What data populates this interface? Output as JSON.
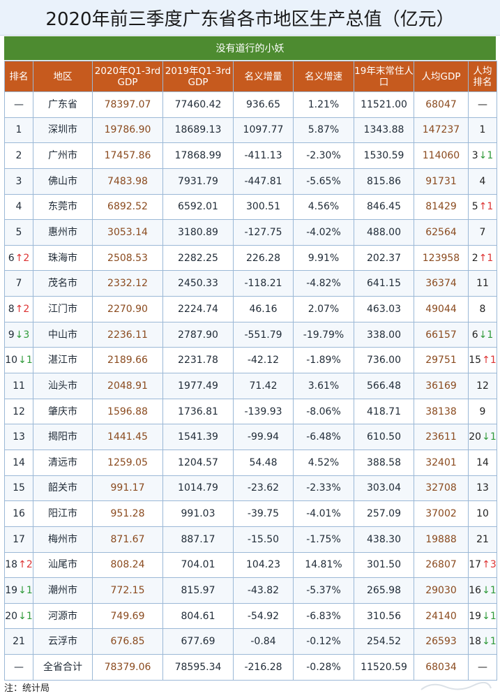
{
  "title": "2020年前三季度广东省各市地区生产总值（亿元）",
  "subtitle": "没有道行的小妖",
  "headers": [
    "排名",
    "地区",
    "2020年Q1-3rd GDP",
    "2019年Q1-3rd GDP",
    "名义增量",
    "名义增速",
    "19年末常住人口",
    "人均GDP",
    "人均排名"
  ],
  "rows": [
    {
      "rank": "—",
      "rank_change": "",
      "rank_dir": "",
      "region": "广东省",
      "gdp2020": "78397.07",
      "gdp2019": "77460.42",
      "increase": "936.65",
      "rate": "1.21%",
      "population": "11521.00",
      "per_capita": "68047",
      "pc_rank": "—",
      "pc_change": "",
      "pc_dir": ""
    },
    {
      "rank": "1",
      "rank_change": "",
      "rank_dir": "",
      "region": "深圳市",
      "gdp2020": "19786.90",
      "gdp2019": "18689.13",
      "increase": "1097.77",
      "rate": "5.87%",
      "population": "1343.88",
      "per_capita": "147237",
      "pc_rank": "1",
      "pc_change": "",
      "pc_dir": ""
    },
    {
      "rank": "2",
      "rank_change": "",
      "rank_dir": "",
      "region": "广州市",
      "gdp2020": "17457.86",
      "gdp2019": "17868.99",
      "increase": "-411.13",
      "rate": "-2.30%",
      "population": "1530.59",
      "per_capita": "114060",
      "pc_rank": "3",
      "pc_change": "↓1",
      "pc_dir": "down"
    },
    {
      "rank": "3",
      "rank_change": "",
      "rank_dir": "",
      "region": "佛山市",
      "gdp2020": "7483.98",
      "gdp2019": "7931.79",
      "increase": "-447.81",
      "rate": "-5.65%",
      "population": "815.86",
      "per_capita": "91731",
      "pc_rank": "4",
      "pc_change": "",
      "pc_dir": ""
    },
    {
      "rank": "4",
      "rank_change": "",
      "rank_dir": "",
      "region": "东莞市",
      "gdp2020": "6892.52",
      "gdp2019": "6592.01",
      "increase": "300.51",
      "rate": "4.56%",
      "population": "846.45",
      "per_capita": "81429",
      "pc_rank": "5",
      "pc_change": "↑1",
      "pc_dir": "up"
    },
    {
      "rank": "5",
      "rank_change": "",
      "rank_dir": "",
      "region": "惠州市",
      "gdp2020": "3053.14",
      "gdp2019": "3180.89",
      "increase": "-127.75",
      "rate": "-4.02%",
      "population": "488.00",
      "per_capita": "62564",
      "pc_rank": "7",
      "pc_change": "",
      "pc_dir": ""
    },
    {
      "rank": "6",
      "rank_change": "↑2",
      "rank_dir": "up",
      "region": "珠海市",
      "gdp2020": "2508.53",
      "gdp2019": "2282.25",
      "increase": "226.28",
      "rate": "9.91%",
      "population": "202.37",
      "per_capita": "123958",
      "pc_rank": "2",
      "pc_change": "↑1",
      "pc_dir": "up"
    },
    {
      "rank": "7",
      "rank_change": "",
      "rank_dir": "",
      "region": "茂名市",
      "gdp2020": "2332.12",
      "gdp2019": "2450.33",
      "increase": "-118.21",
      "rate": "-4.82%",
      "population": "641.15",
      "per_capita": "36374",
      "pc_rank": "11",
      "pc_change": "",
      "pc_dir": ""
    },
    {
      "rank": "8",
      "rank_change": "↑2",
      "rank_dir": "up",
      "region": "江门市",
      "gdp2020": "2270.90",
      "gdp2019": "2224.74",
      "increase": "46.16",
      "rate": "2.07%",
      "population": "463.03",
      "per_capita": "49044",
      "pc_rank": "8",
      "pc_change": "",
      "pc_dir": ""
    },
    {
      "rank": "9",
      "rank_change": "↓3",
      "rank_dir": "down",
      "region": "中山市",
      "gdp2020": "2236.11",
      "gdp2019": "2787.90",
      "increase": "-551.79",
      "rate": "-19.79%",
      "population": "338.00",
      "per_capita": "66157",
      "pc_rank": "6",
      "pc_change": "↓1",
      "pc_dir": "down"
    },
    {
      "rank": "10",
      "rank_change": "↓1",
      "rank_dir": "down",
      "region": "湛江市",
      "gdp2020": "2189.66",
      "gdp2019": "2231.78",
      "increase": "-42.12",
      "rate": "-1.89%",
      "population": "736.00",
      "per_capita": "29751",
      "pc_rank": "15",
      "pc_change": "↑1",
      "pc_dir": "up"
    },
    {
      "rank": "11",
      "rank_change": "",
      "rank_dir": "",
      "region": "汕头市",
      "gdp2020": "2048.91",
      "gdp2019": "1977.49",
      "increase": "71.42",
      "rate": "3.61%",
      "population": "566.48",
      "per_capita": "36169",
      "pc_rank": "12",
      "pc_change": "",
      "pc_dir": ""
    },
    {
      "rank": "12",
      "rank_change": "",
      "rank_dir": "",
      "region": "肇庆市",
      "gdp2020": "1596.88",
      "gdp2019": "1736.81",
      "increase": "-139.93",
      "rate": "-8.06%",
      "population": "418.71",
      "per_capita": "38138",
      "pc_rank": "9",
      "pc_change": "",
      "pc_dir": ""
    },
    {
      "rank": "13",
      "rank_change": "",
      "rank_dir": "",
      "region": "揭阳市",
      "gdp2020": "1441.45",
      "gdp2019": "1541.39",
      "increase": "-99.94",
      "rate": "-6.48%",
      "population": "610.50",
      "per_capita": "23611",
      "pc_rank": "20",
      "pc_change": "↓1",
      "pc_dir": "down"
    },
    {
      "rank": "14",
      "rank_change": "",
      "rank_dir": "",
      "region": "清远市",
      "gdp2020": "1259.05",
      "gdp2019": "1204.57",
      "increase": "54.48",
      "rate": "4.52%",
      "population": "388.58",
      "per_capita": "32401",
      "pc_rank": "14",
      "pc_change": "",
      "pc_dir": ""
    },
    {
      "rank": "15",
      "rank_change": "",
      "rank_dir": "",
      "region": "韶关市",
      "gdp2020": "991.17",
      "gdp2019": "1014.79",
      "increase": "-23.62",
      "rate": "-2.33%",
      "population": "303.04",
      "per_capita": "32708",
      "pc_rank": "13",
      "pc_change": "",
      "pc_dir": ""
    },
    {
      "rank": "16",
      "rank_change": "",
      "rank_dir": "",
      "region": "阳江市",
      "gdp2020": "951.28",
      "gdp2019": "991.03",
      "increase": "-39.75",
      "rate": "-4.01%",
      "population": "257.09",
      "per_capita": "37002",
      "pc_rank": "10",
      "pc_change": "",
      "pc_dir": ""
    },
    {
      "rank": "17",
      "rank_change": "",
      "rank_dir": "",
      "region": "梅州市",
      "gdp2020": "871.67",
      "gdp2019": "887.17",
      "increase": "-15.50",
      "rate": "-1.75%",
      "population": "438.30",
      "per_capita": "19888",
      "pc_rank": "21",
      "pc_change": "",
      "pc_dir": ""
    },
    {
      "rank": "18",
      "rank_change": "↑2",
      "rank_dir": "up",
      "region": "汕尾市",
      "gdp2020": "808.24",
      "gdp2019": "704.01",
      "increase": "104.23",
      "rate": "14.81%",
      "population": "301.50",
      "per_capita": "26807",
      "pc_rank": "17",
      "pc_change": "↑3",
      "pc_dir": "up"
    },
    {
      "rank": "19",
      "rank_change": "↓1",
      "rank_dir": "down",
      "region": "潮州市",
      "gdp2020": "772.15",
      "gdp2019": "815.97",
      "increase": "-43.82",
      "rate": "-5.37%",
      "population": "265.98",
      "per_capita": "29030",
      "pc_rank": "16",
      "pc_change": "↓1",
      "pc_dir": "down"
    },
    {
      "rank": "20",
      "rank_change": "↓1",
      "rank_dir": "down",
      "region": "河源市",
      "gdp2020": "749.69",
      "gdp2019": "804.61",
      "increase": "-54.92",
      "rate": "-6.83%",
      "population": "310.56",
      "per_capita": "24140",
      "pc_rank": "19",
      "pc_change": "↓1",
      "pc_dir": "down"
    },
    {
      "rank": "21",
      "rank_change": "",
      "rank_dir": "",
      "region": "云浮市",
      "gdp2020": "676.85",
      "gdp2019": "677.69",
      "increase": "-0.84",
      "rate": "-0.12%",
      "population": "254.52",
      "per_capita": "26593",
      "pc_rank": "18",
      "pc_change": "↓1",
      "pc_dir": "down"
    },
    {
      "rank": "—",
      "rank_change": "",
      "rank_dir": "",
      "region": "全省合计",
      "gdp2020": "78379.06",
      "gdp2019": "78595.34",
      "increase": "-216.28",
      "rate": "-0.28%",
      "population": "11520.59",
      "per_capita": "68034",
      "pc_rank": "—",
      "pc_change": "",
      "pc_dir": ""
    }
  ],
  "note": "注：统计局",
  "colors": {
    "header_bg": "#c65a1e",
    "subtitle_bg": "#4d8b30",
    "title_bg": "#eaf2fb",
    "up": "#d33333",
    "down": "#2f9a3a"
  }
}
